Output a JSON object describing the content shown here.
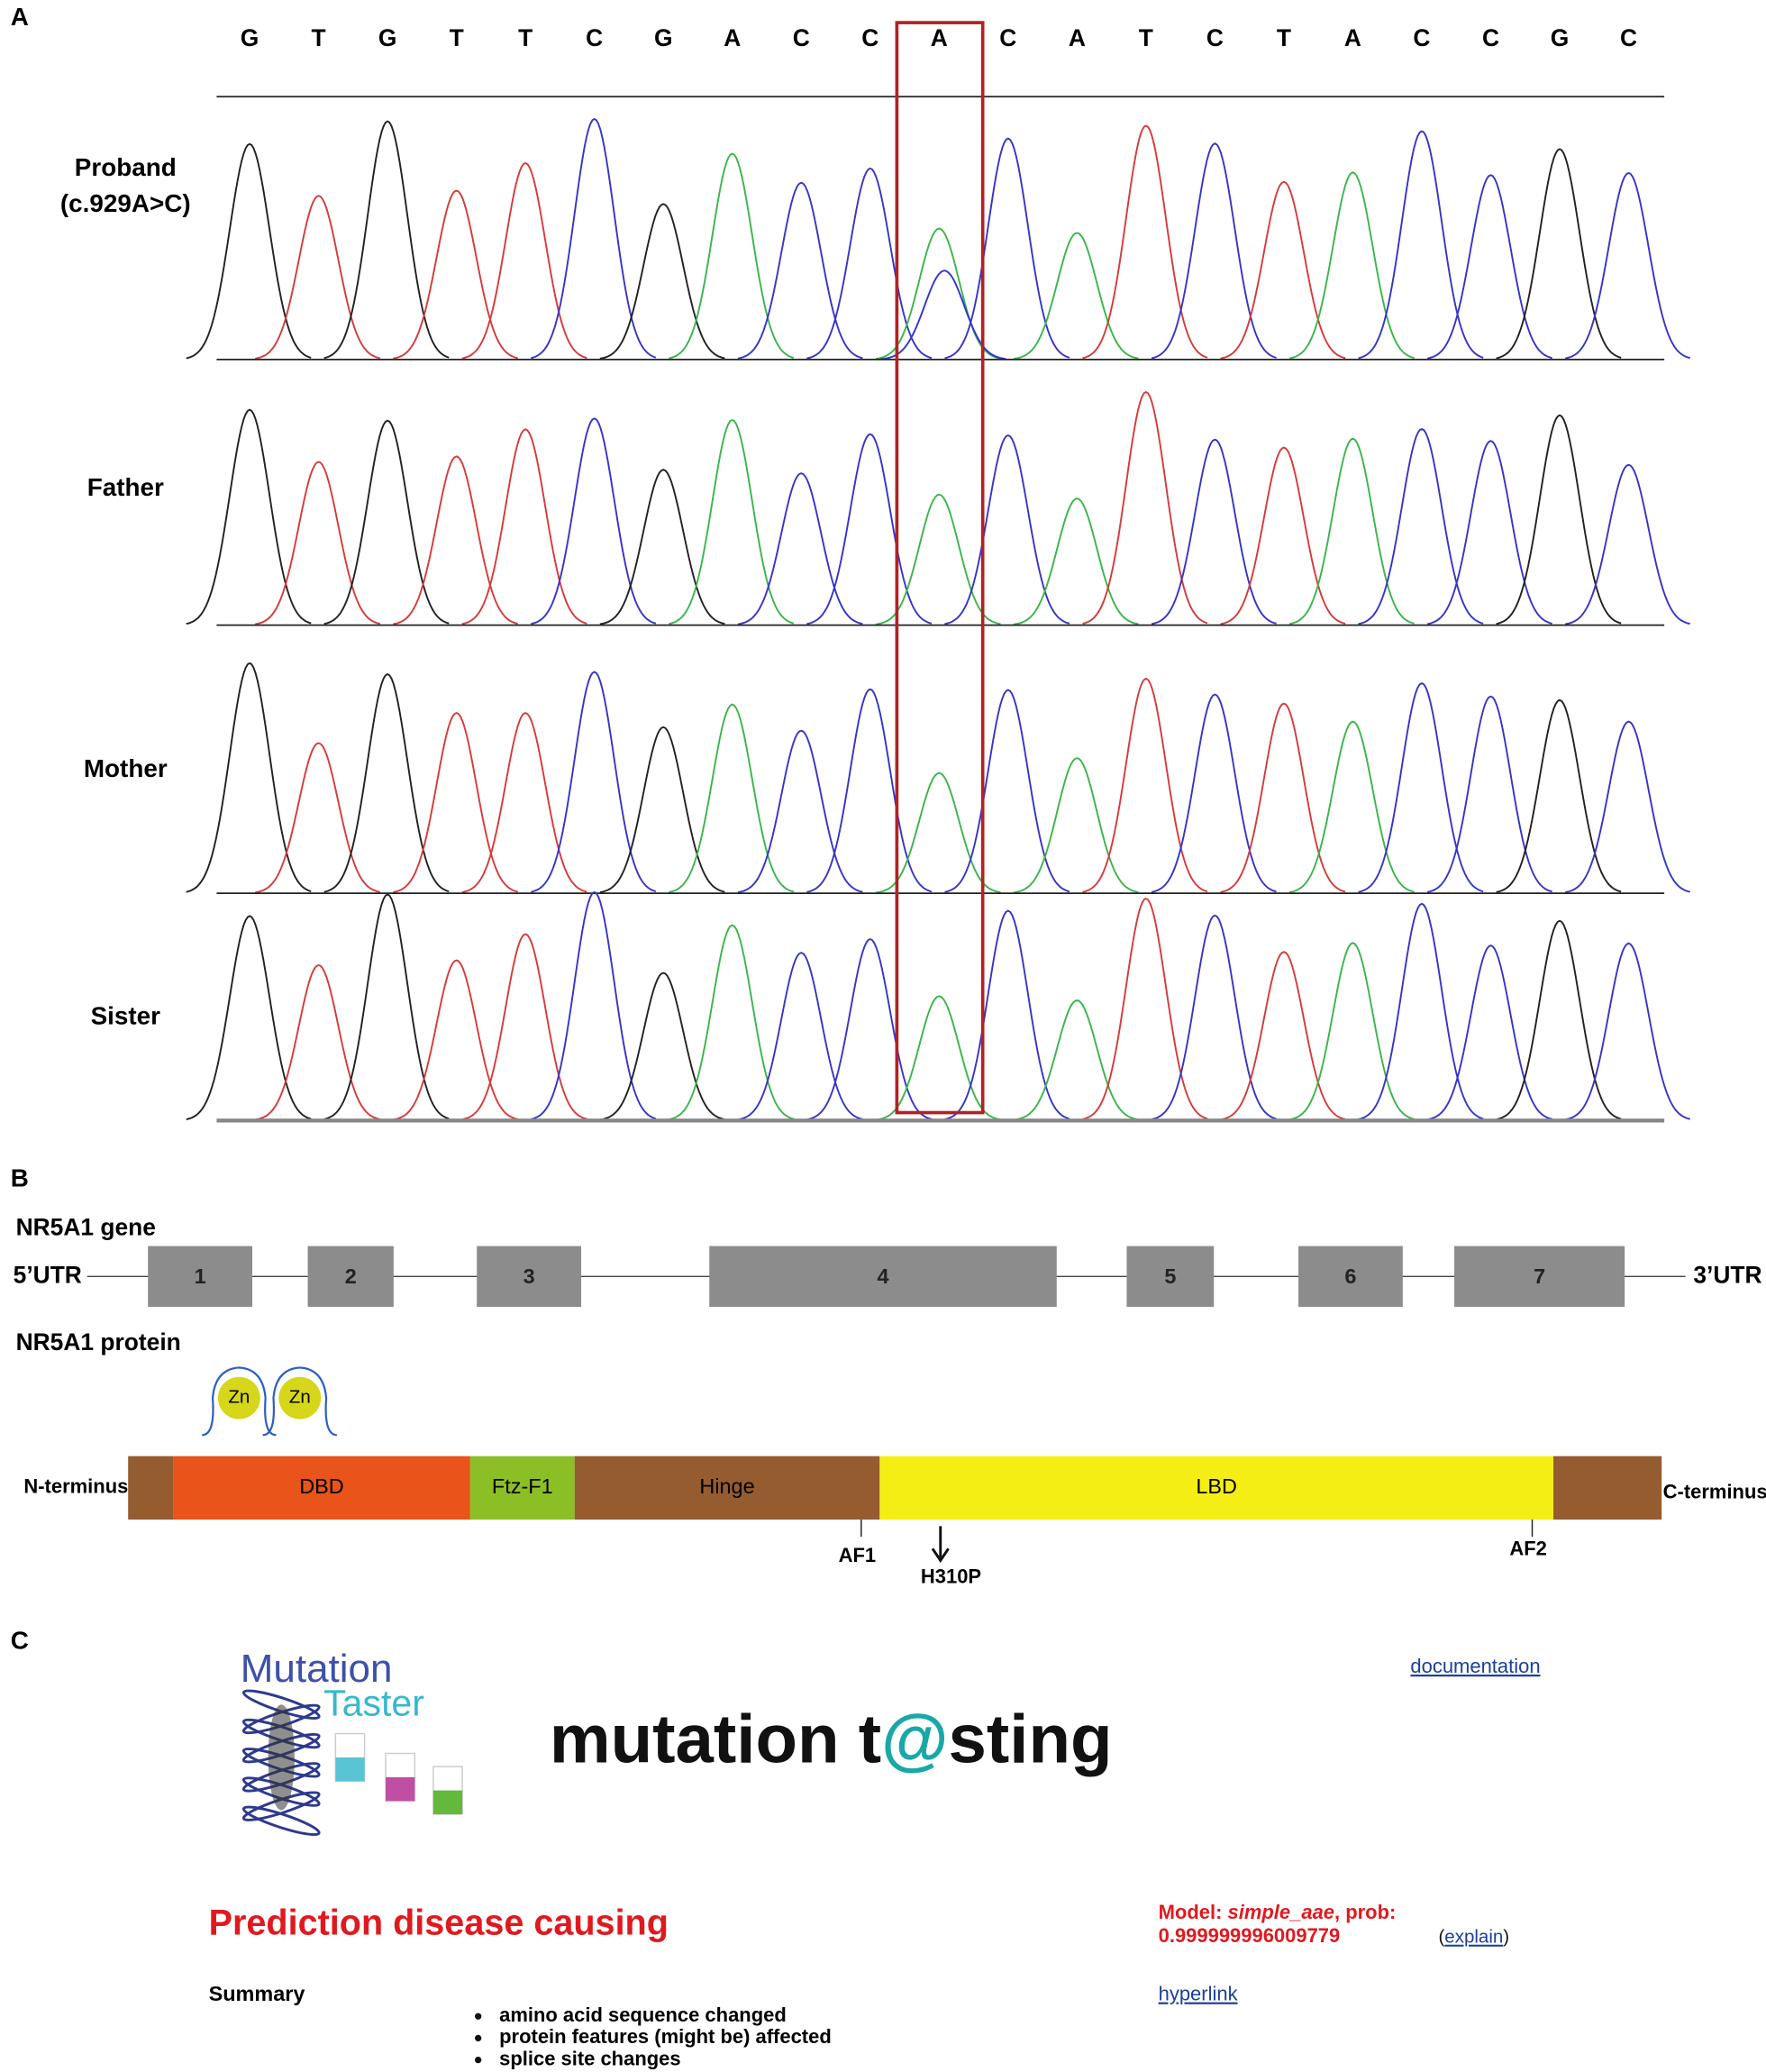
{
  "panel_a": {
    "label": "A",
    "bases": [
      "G",
      "T",
      "G",
      "T",
      "T",
      "C",
      "G",
      "A",
      "C",
      "C",
      "A",
      "C",
      "A",
      "T",
      "C",
      "T",
      "A",
      "C",
      "C",
      "G",
      "C"
    ],
    "samples": [
      "Proband",
      "Father",
      "Mother",
      "Sister"
    ],
    "proband_variant": "(c.929A>C)"
  },
  "panel_b": {
    "label": "B",
    "gene_title": "NR5A1 gene",
    "utr5": "5’UTR",
    "utr3": "3’UTR",
    "exons": [
      "1",
      "2",
      "3",
      "4",
      "5",
      "6",
      "7"
    ],
    "protein_title": "NR5A1 protein",
    "zinc": [
      "Zn",
      "Zn"
    ],
    "n_terminus": "N-terminus",
    "c_terminus": "C-terminus",
    "domains": [
      "DBD",
      "Ftz-F1",
      "Hinge",
      "LBD"
    ],
    "markers": [
      "AF1",
      "AF2"
    ],
    "mutation": "H310P"
  },
  "panel_c": {
    "label": "C",
    "logo": [
      "Mutation",
      "Taster"
    ],
    "documentation": "documentation",
    "title_parts": [
      "mutation t",
      "@",
      "sting"
    ],
    "prediction": "Prediction disease causing",
    "model_parts": [
      "Model: ",
      "simple_aae",
      ", prob:"
    ],
    "probability": "0.999999996009779",
    "explain_parts": [
      "(",
      "explain",
      ")"
    ],
    "summary": "Summary",
    "hyperlink": "hyperlink",
    "bullets": [
      "amino acid sequence changed",
      "protein features (might be) affected",
      "splice site changes"
    ]
  }
}
